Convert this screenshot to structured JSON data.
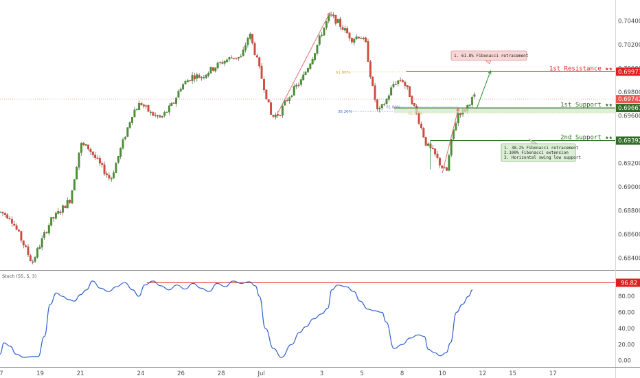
{
  "chart_data": [
    {
      "type": "candlestick",
      "title": "",
      "ylim": [
        0.683,
        0.7056
      ],
      "x_axis": {
        "range_days": [
          17.0,
          47.6
        ],
        "ticks": [
          {
            "day": 17,
            "label": "7"
          },
          {
            "day": 19,
            "label": "19"
          },
          {
            "day": 21,
            "label": "21"
          },
          {
            "day": 24,
            "label": "24"
          },
          {
            "day": 26,
            "label": "26"
          },
          {
            "day": 28,
            "label": "28"
          },
          {
            "day": 30,
            "label": "Jul"
          },
          {
            "day": 33,
            "label": "3"
          },
          {
            "day": 35,
            "label": "5"
          },
          {
            "day": 37,
            "label": "8"
          },
          {
            "day": 39,
            "label": "10"
          },
          {
            "day": 41,
            "label": "12"
          },
          {
            "day": 42.5,
            "label": "15"
          },
          {
            "day": 44.5,
            "label": "17"
          }
        ]
      },
      "y_ticks": [
        "0.70400",
        "0.70200",
        "0.70000",
        "0.69800",
        "0.69600",
        "0.69400",
        "0.69200",
        "0.69000",
        "0.68800",
        "0.68600",
        "0.68400"
      ],
      "price_path": [
        [
          17.0,
          0.6879
        ],
        [
          17.5,
          0.6875
        ],
        [
          18.0,
          0.6858
        ],
        [
          18.6,
          0.6836
        ],
        [
          19.0,
          0.6852
        ],
        [
          19.5,
          0.6871
        ],
        [
          20.0,
          0.688
        ],
        [
          20.5,
          0.689
        ],
        [
          21.0,
          0.6936
        ],
        [
          21.4,
          0.6933
        ],
        [
          21.8,
          0.6923
        ],
        [
          22.5,
          0.6906
        ],
        [
          23.0,
          0.6932
        ],
        [
          23.6,
          0.6963
        ],
        [
          24.0,
          0.6971
        ],
        [
          24.5,
          0.6962
        ],
        [
          25.0,
          0.6958
        ],
        [
          25.6,
          0.697
        ],
        [
          26.0,
          0.6985
        ],
        [
          26.6,
          0.6994
        ],
        [
          27.0,
          0.6993
        ],
        [
          27.5,
          0.6999
        ],
        [
          28.0,
          0.7005
        ],
        [
          28.6,
          0.701
        ],
        [
          29.0,
          0.7009
        ],
        [
          29.4,
          0.703
        ],
        [
          29.8,
          0.7006
        ],
        [
          30.2,
          0.698
        ],
        [
          30.5,
          0.6959
        ],
        [
          30.9,
          0.6962
        ],
        [
          31.2,
          0.6972
        ],
        [
          31.6,
          0.6982
        ],
        [
          32.0,
          0.699
        ],
        [
          32.6,
          0.7012
        ],
        [
          33.0,
          0.703
        ],
        [
          33.4,
          0.7045
        ],
        [
          33.8,
          0.7039
        ],
        [
          34.1,
          0.7033
        ],
        [
          34.5,
          0.7025
        ],
        [
          34.9,
          0.7028
        ],
        [
          35.2,
          0.702
        ],
        [
          35.5,
          0.6986
        ],
        [
          35.8,
          0.6962
        ],
        [
          36.2,
          0.6973
        ],
        [
          36.6,
          0.6988
        ],
        [
          37.0,
          0.6991
        ],
        [
          37.4,
          0.6977
        ],
        [
          37.8,
          0.6958
        ],
        [
          38.2,
          0.6936
        ],
        [
          38.6,
          0.6928
        ],
        [
          38.9,
          0.6919
        ],
        [
          39.2,
          0.6912
        ],
        [
          39.5,
          0.6944
        ],
        [
          39.8,
          0.6963
        ],
        [
          40.1,
          0.6964
        ],
        [
          40.4,
          0.6973
        ],
        [
          40.6,
          0.6976
        ]
      ],
      "price_labels": [
        {
          "text": "0.69973",
          "color": "#dd1f1f"
        },
        {
          "text": "0.69742",
          "color": "#ef5350"
        },
        {
          "text": "0.69667",
          "color": "#2e6b24"
        },
        {
          "text": "0.69392",
          "color": "#2e6b24"
        }
      ],
      "levels": [
        {
          "name": "1st Resistance ★★",
          "price": 0.69973,
          "color": "#dd1f1f",
          "x_start_day": 37.2
        },
        {
          "name": "1st Support ★★",
          "price": 0.69667,
          "color": "#2e6b24",
          "x_start_day": 36.6
        },
        {
          "name": "2nd Support ★★",
          "price": 0.69392,
          "color": "#2e6b24",
          "x_start_day": 38.4
        }
      ],
      "last_price_line": 0.69742,
      "fib_labels": [
        {
          "text": "61.80%",
          "price": 0.6997,
          "day": 33.7,
          "color": "#e0a030"
        },
        {
          "text": "61.80%",
          "price": 0.69675,
          "day": 36.2,
          "color": "#7a7ad0"
        },
        {
          "text": "38.20%",
          "price": 0.69638,
          "day": 33.8,
          "color": "#3a6fd0"
        },
        {
          "text": "61.80%",
          "price": 0.69625,
          "day": 37.3,
          "color": "#e0a030"
        }
      ],
      "notes": [
        {
          "lines": [
            "1. 61.8% Fibonacci retracement"
          ],
          "fill": "#f8d7d7",
          "border": "#e06a6a"
        },
        {
          "lines": [
            "1. 38.2% Fibonacci retracement",
            "2.100% Fibonacci extension",
            "3. Horizontal swing low support"
          ],
          "fill": "#dcefd6",
          "border": "#5aa04a"
        }
      ]
    },
    {
      "type": "line",
      "title": "Stoch (55, 5, 3)",
      "ylim": [
        -8,
        110
      ],
      "y_ticks": [
        "80.00",
        "60.00",
        "40.00",
        "20.00",
        "0.00"
      ],
      "level_label": "96.82",
      "level_value": 96.82,
      "series": [
        {
          "name": "",
          "color": "#2f5fd0",
          "points": [
            [
              17.0,
              8
            ],
            [
              17.2,
              22
            ],
            [
              17.5,
              18
            ],
            [
              17.8,
              8
            ],
            [
              18.2,
              4
            ],
            [
              18.6,
              5
            ],
            [
              18.9,
              5
            ],
            [
              19.2,
              30
            ],
            [
              19.5,
              70
            ],
            [
              19.8,
              84
            ],
            [
              20.1,
              80
            ],
            [
              20.4,
              76
            ],
            [
              20.7,
              74
            ],
            [
              21.0,
              82
            ],
            [
              21.3,
              88
            ],
            [
              21.6,
              99
            ],
            [
              22.0,
              90
            ],
            [
              22.4,
              86
            ],
            [
              22.8,
              92
            ],
            [
              23.2,
              97
            ],
            [
              23.6,
              88
            ],
            [
              23.9,
              80
            ],
            [
              24.2,
              94
            ],
            [
              24.6,
              99
            ],
            [
              25.0,
              93
            ],
            [
              25.4,
              88
            ],
            [
              25.8,
              94
            ],
            [
              26.2,
              89
            ],
            [
              26.6,
              96
            ],
            [
              27.0,
              90
            ],
            [
              27.4,
              86
            ],
            [
              27.8,
              96
            ],
            [
              28.2,
              92
            ],
            [
              28.6,
              99
            ],
            [
              29.0,
              96
            ],
            [
              29.4,
              98
            ],
            [
              29.7,
              93
            ],
            [
              29.9,
              80
            ],
            [
              30.2,
              40
            ],
            [
              30.6,
              15
            ],
            [
              31.0,
              4
            ],
            [
              31.5,
              20
            ],
            [
              31.9,
              35
            ],
            [
              32.2,
              42
            ],
            [
              32.6,
              52
            ],
            [
              33.0,
              58
            ],
            [
              33.3,
              65
            ],
            [
              33.5,
              88
            ],
            [
              33.8,
              94
            ],
            [
              34.2,
              92
            ],
            [
              34.6,
              86
            ],
            [
              34.9,
              74
            ],
            [
              35.3,
              64
            ],
            [
              35.6,
              62
            ],
            [
              36.0,
              60
            ],
            [
              36.2,
              48
            ],
            [
              36.6,
              15
            ],
            [
              37.0,
              20
            ],
            [
              37.4,
              28
            ],
            [
              37.8,
              32
            ],
            [
              38.1,
              30
            ],
            [
              38.3,
              14
            ],
            [
              38.6,
              10
            ],
            [
              38.9,
              6
            ],
            [
              39.2,
              10
            ],
            [
              39.4,
              22
            ],
            [
              39.7,
              60
            ],
            [
              40.0,
              70
            ],
            [
              40.3,
              80
            ],
            [
              40.5,
              88
            ]
          ]
        }
      ]
    }
  ]
}
